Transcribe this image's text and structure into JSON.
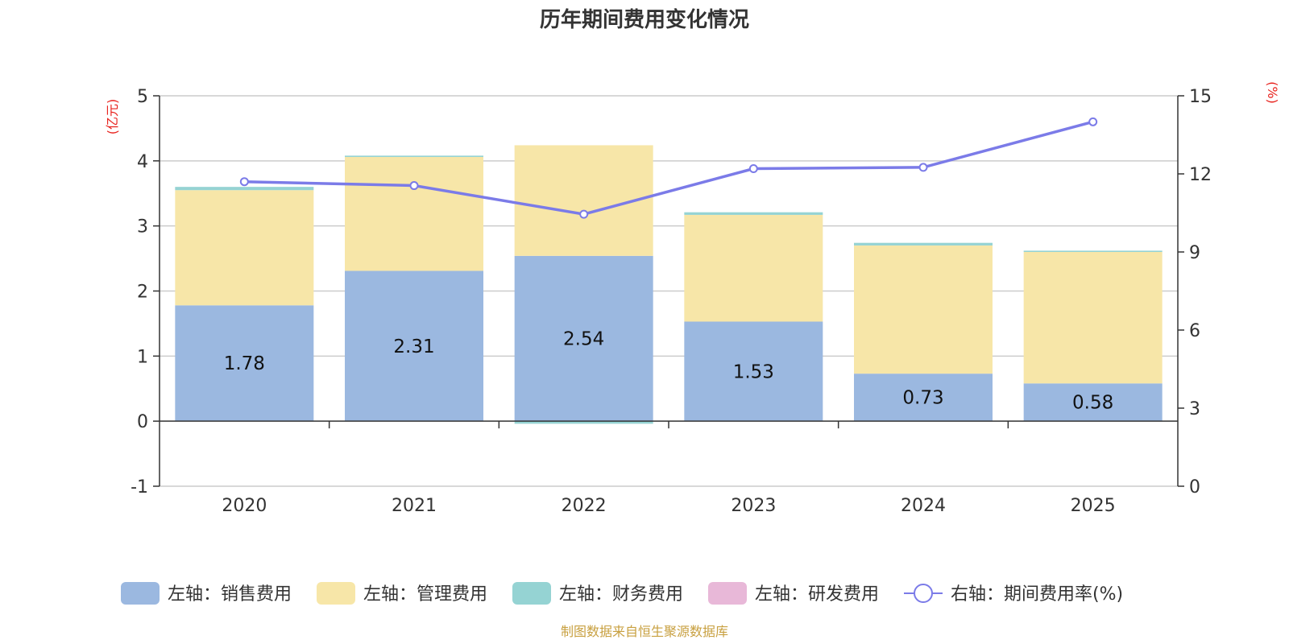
{
  "chart_data": {
    "type": "bar",
    "title": "历年期间费用变化情况",
    "categories": [
      "2020",
      "2021",
      "2022",
      "2023",
      "2024",
      "2025"
    ],
    "stacked": true,
    "left_axis": {
      "unit_label": "(亿元)",
      "ylim": [
        -1,
        5
      ],
      "ticks": [
        -1,
        0,
        1,
        2,
        3,
        4,
        5
      ]
    },
    "right_axis": {
      "unit_label": "(%)",
      "ylim": [
        0,
        15
      ],
      "ticks": [
        0,
        3,
        6,
        9,
        12,
        15
      ]
    },
    "series": [
      {
        "name": "左轴：销售费用",
        "axis": "left",
        "kind": "bar",
        "color": "#9bb8e0",
        "values": [
          1.78,
          2.31,
          2.54,
          1.53,
          0.73,
          0.58
        ],
        "show_labels": true
      },
      {
        "name": "左轴：管理费用",
        "axis": "left",
        "kind": "bar",
        "color": "#f7e6a8",
        "values": [
          1.77,
          1.75,
          1.7,
          1.64,
          1.97,
          2.02
        ]
      },
      {
        "name": "左轴：财务费用",
        "axis": "left",
        "kind": "bar",
        "color": "#95d3d3",
        "values": [
          0.05,
          0.02,
          -0.04,
          0.04,
          0.04,
          0.02
        ]
      },
      {
        "name": "左轴：研发费用",
        "axis": "left",
        "kind": "bar",
        "color": "#e8b8d8",
        "values": [
          0,
          0,
          0,
          0,
          0,
          0
        ]
      },
      {
        "name": "右轴：期间费用率(%)",
        "axis": "right",
        "kind": "line",
        "color": "#7b7be8",
        "values": [
          11.7,
          11.55,
          10.45,
          12.2,
          12.25,
          14.0
        ]
      }
    ],
    "grid": true,
    "legend_position": "bottom"
  },
  "axis_colors": {
    "unit": "#e8231e",
    "axis": "#333333",
    "grid": "#cccccc"
  },
  "source": {
    "text": "制图数据来自恒生聚源数据库",
    "color": "#c8a040"
  }
}
